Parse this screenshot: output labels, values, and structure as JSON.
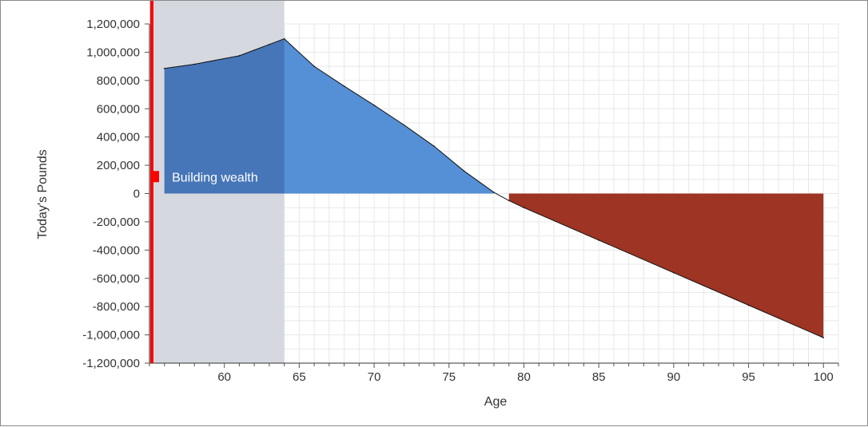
{
  "chart_data": {
    "type": "area",
    "xlabel": "Age",
    "ylabel": "Today's Pounds",
    "xlim": [
      55,
      101
    ],
    "ylim": [
      -1200000,
      1200000
    ],
    "x_ticks": [
      60,
      65,
      70,
      75,
      80,
      85,
      90,
      95,
      100
    ],
    "x_tick_labels": [
      "60",
      "65",
      "70",
      "75",
      "80",
      "85",
      "90",
      "95",
      "100"
    ],
    "y_ticks": [
      1200000,
      1000000,
      800000,
      600000,
      400000,
      200000,
      0,
      -200000,
      -400000,
      -600000,
      -800000,
      -1000000,
      -1200000
    ],
    "y_tick_labels": [
      "1,200,000",
      "1,000,000",
      "800,000",
      "600,000",
      "400,000",
      "200,000",
      "0",
      "-200,000",
      "-400,000",
      "-600,000",
      "-800,000",
      "-1,000,000",
      "-1,200,000"
    ],
    "grid": true,
    "current_age": 55,
    "phase": {
      "label": "Building wealth",
      "start": 55,
      "end": 64
    },
    "series": [
      {
        "x": [
          56,
          58,
          61,
          62,
          63,
          64,
          66,
          68,
          70,
          72,
          74,
          76,
          78,
          79,
          80,
          85,
          90,
          95,
          100
        ],
        "values": [
          885000,
          915000,
          975000,
          1015000,
          1055000,
          1095000,
          900000,
          760000,
          625000,
          485000,
          335000,
          160000,
          8000,
          -50000,
          -100000,
          -330000,
          -560000,
          -790000,
          -1020000
        ]
      }
    ],
    "colors": {
      "positive_fill": "#558fd6",
      "positive_fill_in_phase": "#4676b8",
      "negative_fill": "#9e3423",
      "phase_band": "#d5d8df",
      "current_age_line": "#ff0000",
      "grid": "#e8e8e8",
      "line": "#111111"
    }
  }
}
